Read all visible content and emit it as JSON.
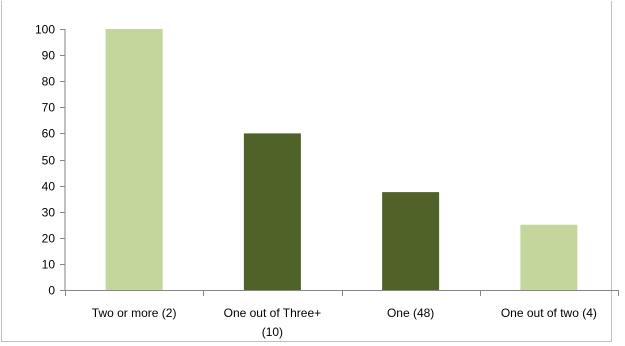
{
  "chart_data": {
    "type": "bar",
    "title": "",
    "xlabel": "",
    "ylabel": "",
    "categories": [
      [
        "Two or more (2)"
      ],
      [
        "One out of Three+",
        "(10)"
      ],
      [
        "One (48)"
      ],
      [
        "One out of two (4)"
      ]
    ],
    "values": [
      100,
      60,
      37.5,
      25
    ],
    "bar_colors": [
      "#c3d69b",
      "#4f6228",
      "#4f6228",
      "#c3d69b"
    ],
    "ylim": [
      0,
      100
    ],
    "yticks": [
      0,
      10,
      20,
      30,
      40,
      50,
      60,
      70,
      80,
      90,
      100
    ],
    "grid": false,
    "legend": "none"
  }
}
